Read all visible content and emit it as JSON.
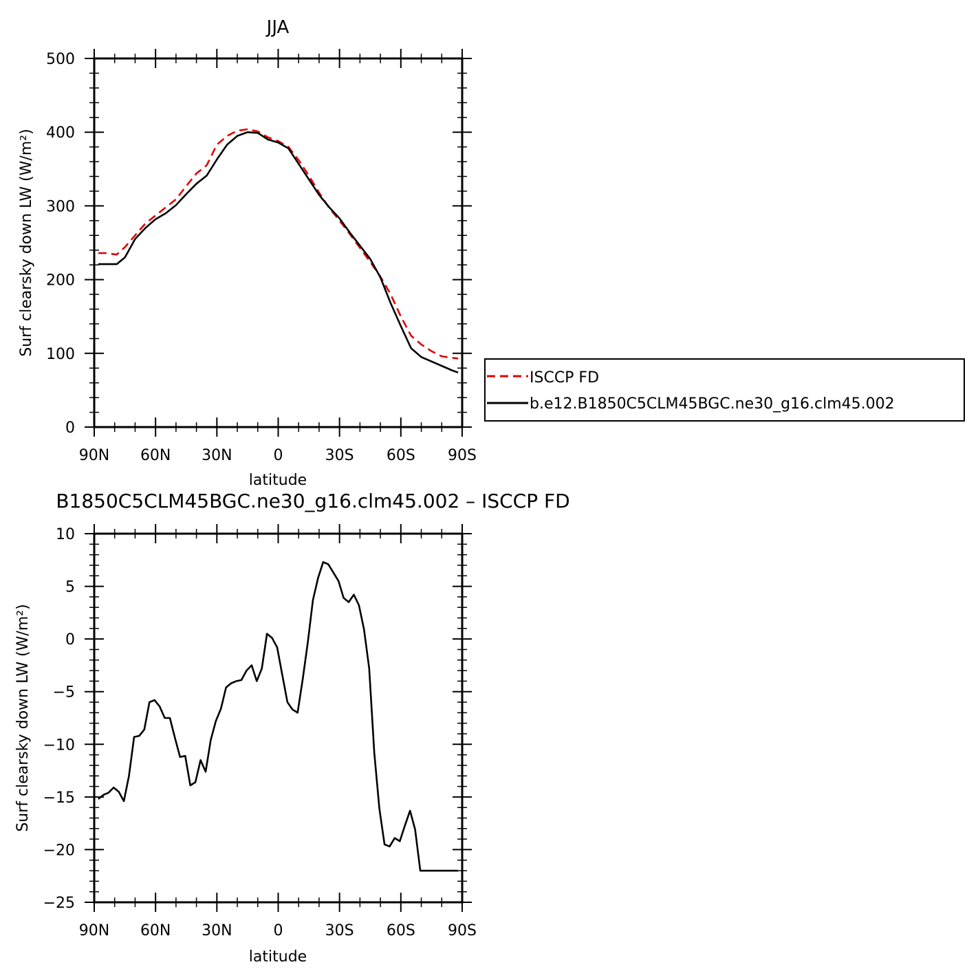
{
  "chart_data": [
    {
      "type": "line",
      "title": "JJA",
      "xlabel": "latitude",
      "ylabel": "Surf clearsky down LW (W/m²)",
      "ylim": [
        0,
        500
      ],
      "xlim": [
        90,
        -90
      ],
      "yticks": [
        "0",
        "100",
        "200",
        "300",
        "400",
        "500"
      ],
      "xticks": [
        "90N",
        "60N",
        "30N",
        "0",
        "30S",
        "60S",
        "90S"
      ],
      "legend_position": "right",
      "series": [
        {
          "name": "ISCCP FD",
          "color": "#e00000",
          "dash": "dashed",
          "x": [
            88,
            84,
            79,
            75,
            70,
            65,
            60,
            55,
            50,
            45,
            40,
            35,
            30,
            25,
            20,
            15,
            10,
            5,
            0,
            -5,
            -10,
            -15,
            -20,
            -25,
            -30,
            -35,
            -40,
            -45,
            -50,
            -55,
            -60,
            -65,
            -70,
            -75,
            -80,
            -85,
            -88
          ],
          "y": [
            236,
            236,
            234,
            244,
            260,
            276,
            287,
            298,
            309,
            327,
            344,
            355,
            383,
            395,
            402,
            404,
            401,
            393,
            388,
            380,
            362,
            341,
            318,
            297,
            280,
            262,
            243,
            224,
            204,
            180,
            150,
            124,
            112,
            103,
            96,
            94,
            93
          ]
        },
        {
          "name": "b.e12.B1850C5CLM45BGC.ne30_g16.clm45.002",
          "color": "#000000",
          "dash": "solid",
          "x": [
            88,
            84,
            79,
            75,
            70,
            65,
            60,
            55,
            50,
            45,
            40,
            35,
            30,
            25,
            20,
            15,
            10,
            5,
            0,
            -5,
            -10,
            -15,
            -20,
            -25,
            -30,
            -35,
            -40,
            -45,
            -50,
            -55,
            -60,
            -65,
            -70,
            -75,
            -80,
            -85,
            -88
          ],
          "y": [
            221,
            221,
            221,
            230,
            255,
            270,
            282,
            290,
            301,
            316,
            330,
            341,
            363,
            383,
            395,
            400,
            399,
            390,
            386,
            378,
            357,
            336,
            315,
            298,
            283,
            264,
            246,
            228,
            203,
            168,
            137,
            107,
            95,
            89,
            83,
            77,
            74
          ]
        }
      ]
    },
    {
      "type": "line",
      "title": "B1850C5CLM45BGC.ne30_g16.clm45.002 – ISCCP FD",
      "xlabel": "latitude",
      "ylabel": "Surf clearsky down LW (W/m²)",
      "ylim": [
        -25,
        10
      ],
      "xlim": [
        90,
        -90
      ],
      "yticks": [
        "−25",
        "−20",
        "−15",
        "−10",
        "−5",
        "0",
        "5",
        "10"
      ],
      "xticks": [
        "90N",
        "60N",
        "30N",
        "0",
        "30S",
        "60S",
        "90S"
      ],
      "series": [
        {
          "color": "#000000",
          "x": [
            88,
            85.5,
            83,
            80.5,
            78,
            75.5,
            73,
            70.5,
            68,
            65.5,
            63,
            60.5,
            58,
            55.5,
            53,
            50.5,
            48,
            45.5,
            43,
            40.5,
            38,
            35.5,
            33,
            30.5,
            28,
            25.5,
            23,
            20.5,
            18,
            15.5,
            13,
            10.5,
            8,
            5.5,
            3,
            0.5,
            -2,
            -4.5,
            -7,
            -9.5,
            -12,
            -14.5,
            -17,
            -19.5,
            -22,
            -24.5,
            -27,
            -29.5,
            -32,
            -34.5,
            -37,
            -39.5,
            -42,
            -44.5,
            -47,
            -49.5,
            -52,
            -54.5,
            -57,
            -59.5,
            -62,
            -64.5,
            -67,
            -69.5,
            -72,
            -74.5,
            -77,
            -79.5,
            -82,
            -84.5,
            -87,
            -88
          ],
          "y": [
            -15.2,
            -14.8,
            -14.6,
            -14.1,
            -14.5,
            -15.4,
            -13.0,
            -9.3,
            -9.2,
            -8.6,
            -6.0,
            -5.8,
            -6.4,
            -7.5,
            -7.5,
            -9.4,
            -11.2,
            -11.1,
            -13.9,
            -13.6,
            -11.5,
            -12.6,
            -9.6,
            -7.8,
            -6.6,
            -4.6,
            -4.2,
            -4.0,
            -3.9,
            -3.0,
            -2.5,
            -4.0,
            -2.8,
            0.5,
            0.1,
            -0.8,
            -3.4,
            -6.0,
            -6.7,
            -7.0,
            -3.8,
            -0.3,
            3.7,
            5.8,
            7.3,
            7.1,
            6.3,
            5.5,
            3.9,
            3.5,
            4.2,
            3.2,
            0.9,
            -2.8,
            -10.8,
            -16.1,
            -19.5,
            -19.7,
            -18.9,
            -19.2,
            -17.7,
            -16.3,
            -18.1,
            -22.0,
            -22.0,
            -22.0,
            -22.0,
            -22.0,
            -22.0,
            -22.0,
            -22.0,
            -22.0
          ]
        }
      ]
    }
  ]
}
